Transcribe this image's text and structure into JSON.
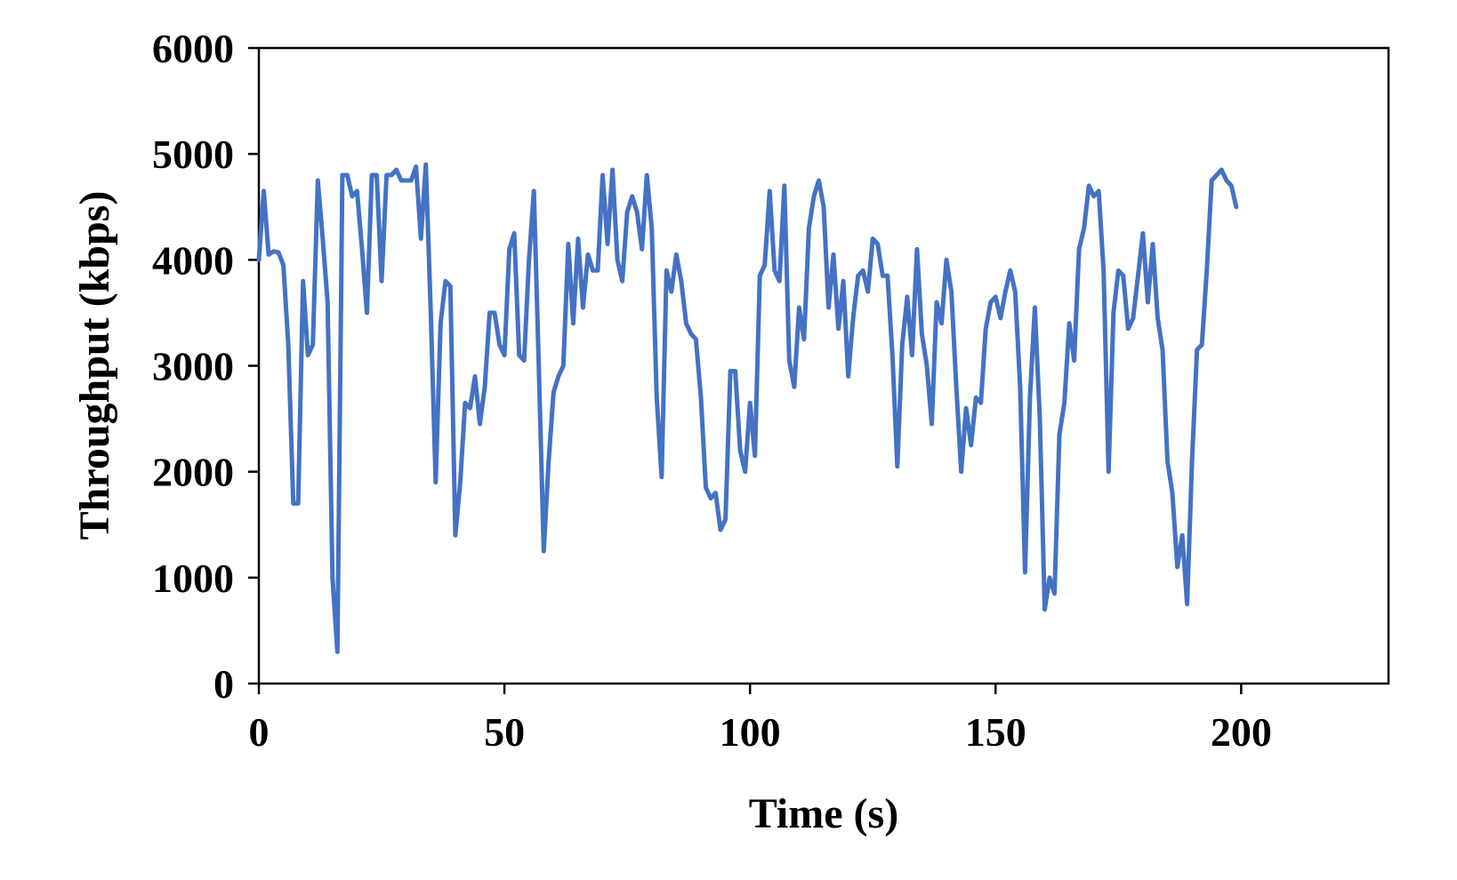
{
  "chart_data": {
    "type": "line",
    "title": "",
    "xlabel": "Time (s)",
    "ylabel": "Throughput (kbps)",
    "xlim": [
      0,
      230
    ],
    "ylim": [
      0,
      6000
    ],
    "xticks": [
      0,
      50,
      100,
      150,
      200
    ],
    "yticks": [
      0,
      1000,
      2000,
      3000,
      4000,
      5000,
      6000
    ],
    "grid": false,
    "legend": "none",
    "line_color": "#4472C4",
    "series": [
      {
        "x": [
          0,
          1,
          2,
          3,
          4,
          5,
          6,
          7,
          8,
          9,
          10,
          11,
          12,
          13,
          14,
          15,
          16,
          17,
          18,
          19,
          20,
          21,
          22,
          23,
          24,
          25,
          26,
          27,
          28,
          29,
          30,
          31,
          32,
          33,
          34,
          35,
          36,
          37,
          38,
          39,
          40,
          41,
          42,
          43,
          44,
          45,
          46,
          47,
          48,
          49,
          50,
          51,
          52,
          53,
          54,
          55,
          56,
          57,
          58,
          59,
          60,
          61,
          62,
          63,
          64,
          65,
          66,
          67,
          68,
          69,
          70,
          71,
          72,
          73,
          74,
          75,
          76,
          77,
          78,
          79,
          80,
          81,
          82,
          83,
          84,
          85,
          86,
          87,
          88,
          89,
          90,
          91,
          92,
          93,
          94,
          95,
          96,
          97,
          98,
          99,
          100,
          101,
          102,
          103,
          104,
          105,
          106,
          107,
          108,
          109,
          110,
          111,
          112,
          113,
          114,
          115,
          116,
          117,
          118,
          119,
          120,
          121,
          122,
          123,
          124,
          125,
          126,
          127,
          128,
          129,
          130,
          131,
          132,
          133,
          134,
          135,
          136,
          137,
          138,
          139,
          140,
          141,
          142,
          143,
          144,
          145,
          146,
          147,
          148,
          149,
          150,
          151,
          152,
          153,
          154,
          155,
          156,
          157,
          158,
          159,
          160,
          161,
          162,
          163,
          164,
          165,
          166,
          167,
          168,
          169,
          170,
          171,
          172,
          173,
          174,
          175,
          176,
          177,
          178,
          179,
          180,
          181,
          182,
          183,
          184,
          185,
          186,
          187,
          188,
          189,
          190,
          191,
          192,
          193,
          194,
          195,
          196,
          197,
          198,
          199
        ],
        "values": [
          4000,
          4650,
          4050,
          4080,
          4070,
          3950,
          3200,
          1700,
          1700,
          3800,
          3100,
          3200,
          4750,
          4200,
          3600,
          1000,
          300,
          4800,
          4800,
          4600,
          4650,
          4100,
          3500,
          4800,
          4800,
          3800,
          4800,
          4800,
          4850,
          4750,
          4750,
          4750,
          4880,
          4200,
          4900,
          3500,
          1900,
          3400,
          3800,
          3750,
          1400,
          1900,
          2650,
          2600,
          2900,
          2450,
          2800,
          3500,
          3500,
          3200,
          3100,
          4100,
          4250,
          3100,
          3050,
          4000,
          4650,
          3000,
          1250,
          2100,
          2750,
          2900,
          3000,
          4150,
          3400,
          4200,
          3550,
          4050,
          3900,
          3900,
          4800,
          4150,
          4850,
          4000,
          3800,
          4450,
          4600,
          4450,
          4100,
          4800,
          4300,
          2700,
          1950,
          3900,
          3700,
          4050,
          3800,
          3400,
          3300,
          3250,
          2700,
          1850,
          1750,
          1800,
          1450,
          1550,
          2950,
          2950,
          2200,
          2000,
          2650,
          2150,
          3850,
          3950,
          4650,
          3900,
          3800,
          4700,
          3050,
          2800,
          3550,
          3250,
          4300,
          4600,
          4750,
          4500,
          3550,
          4050,
          3350,
          3800,
          2900,
          3450,
          3850,
          3900,
          3700,
          4200,
          4150,
          3850,
          3850,
          3100,
          2050,
          3200,
          3650,
          3100,
          4100,
          3300,
          3000,
          2450,
          3600,
          3400,
          4000,
          3700,
          2800,
          2000,
          2600,
          2250,
          2700,
          2650,
          3350,
          3600,
          3650,
          3450,
          3700,
          3900,
          3700,
          2800,
          1050,
          2700,
          3550,
          2500,
          700,
          1000,
          850,
          2350,
          2650,
          3400,
          3050,
          4100,
          4300,
          4700,
          4600,
          4650,
          3900,
          2000,
          3500,
          3900,
          3850,
          3350,
          3450,
          3850,
          4250,
          3600,
          4150,
          3450,
          3150,
          2100,
          1800,
          1100,
          1400,
          750,
          2100,
          3150,
          3200,
          3900,
          4750,
          4800,
          4850,
          4750,
          4700,
          4500
        ]
      }
    ]
  }
}
